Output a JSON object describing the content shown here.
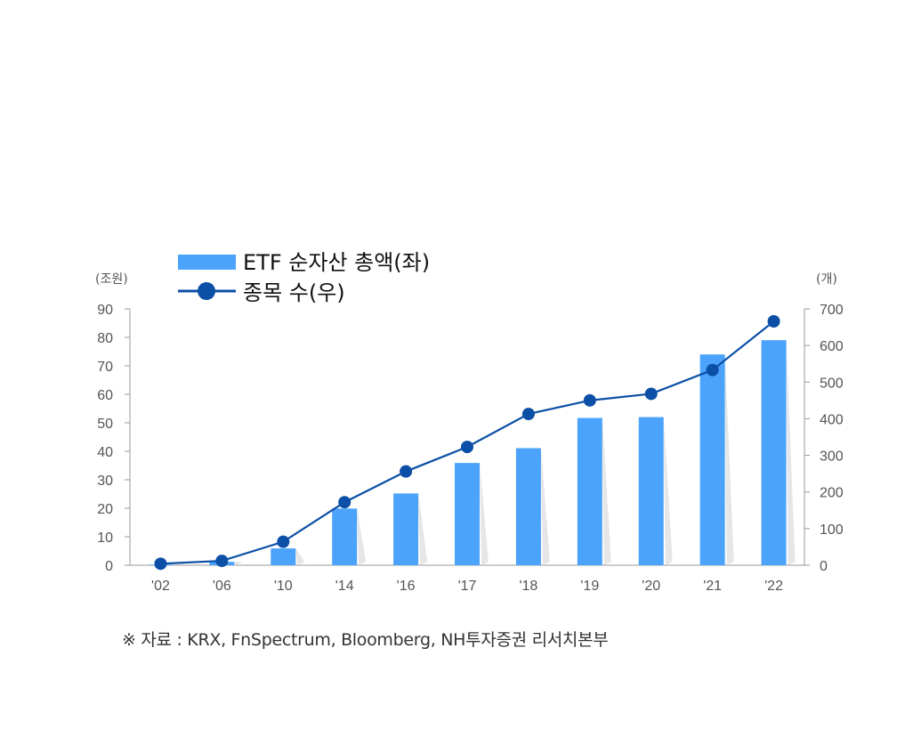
{
  "chart_data": {
    "type": "bar",
    "categories": [
      "'02",
      "'06",
      "'10",
      "'14",
      "'16",
      "'17",
      "'18",
      "'19",
      "'20",
      "'21",
      "'22"
    ],
    "series": [
      {
        "name": "ETF 순자산 총액(좌)",
        "type": "bar",
        "axis": "left",
        "values": [
          0.2,
          1.2,
          5.9,
          19.9,
          25.2,
          35.9,
          41.1,
          51.7,
          52.0,
          74.0,
          79.0
        ]
      },
      {
        "name": "종목 수(우)",
        "type": "line",
        "axis": "right",
        "values": [
          4,
          12,
          64,
          172,
          256,
          323,
          413,
          450,
          468,
          533,
          666
        ]
      }
    ],
    "y_left": {
      "unit": "(조원)",
      "ylim": [
        0,
        90
      ],
      "ticks": [
        "0",
        "10",
        "20",
        "30",
        "40",
        "50",
        "60",
        "70",
        "80",
        "90"
      ]
    },
    "y_right": {
      "unit": "(개)",
      "ylim": [
        0,
        700
      ],
      "ticks": [
        "0",
        "100",
        "200",
        "300",
        "400",
        "500",
        "600",
        "700"
      ]
    },
    "legend_placement": "top-left",
    "grid": false,
    "colors": {
      "bar": "#4ba3fb",
      "bar_shadow": "#e6e6e6",
      "line": "#0b4fa6",
      "axis": "#999999"
    }
  },
  "source_note": "※ 자료 : KRX, FnSpectrum, Bloomberg, NH투자증권 리서치본부"
}
